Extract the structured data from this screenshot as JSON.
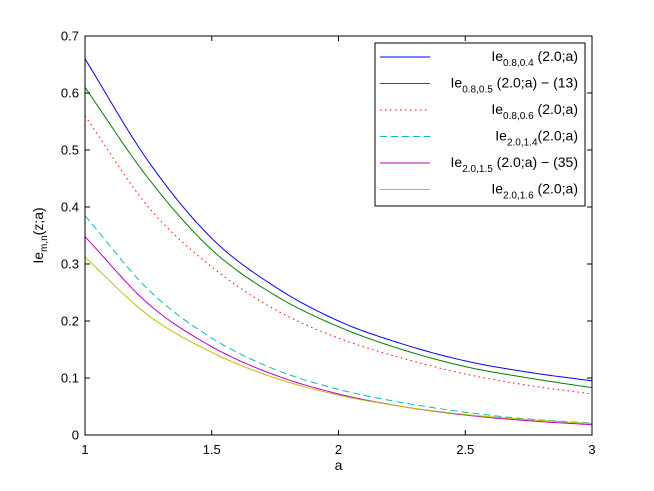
{
  "chart_data": {
    "type": "line",
    "title": "",
    "xlabel": "a",
    "ylabel": {
      "main": "Ie",
      "sub": "m,n",
      "suffix": "(z;a)"
    },
    "xlim": [
      1,
      3
    ],
    "ylim": [
      0,
      0.7
    ],
    "xticks": [
      1,
      1.5,
      2,
      2.5,
      3
    ],
    "xtick_labels": [
      "1",
      "1.5",
      "2",
      "2.5",
      "3"
    ],
    "yticks": [
      0,
      0.1,
      0.2,
      0.3,
      0.4,
      0.5,
      0.6,
      0.7
    ],
    "ytick_labels": [
      "0",
      "0.1",
      "0.2",
      "0.3",
      "0.4",
      "0.5",
      "0.6",
      "0.7"
    ],
    "grid": false,
    "legend_position": "top-right",
    "x": [
      1,
      1.25,
      1.5,
      1.75,
      2,
      2.25,
      2.5,
      2.75,
      3
    ],
    "series": [
      {
        "name": "Ie_{0.8,0.4} (2.0;a)",
        "legend": {
          "main": "Ie",
          "sub": "0.8,0.4",
          "suffix": " (2.0;a)"
        },
        "color": "#0000ff",
        "dash": "solid",
        "values": [
          0.66,
          0.48,
          0.345,
          0.26,
          0.2,
          0.16,
          0.13,
          0.11,
          0.095
        ]
      },
      {
        "name": "Ie_{0.8,0.5} (2.0;a) - (13)",
        "legend": {
          "main": "Ie",
          "sub": "0.8,0.5",
          "suffix": " (2.0;a) − (13)"
        },
        "color": "#008000",
        "dash": "solid",
        "values": [
          0.61,
          0.45,
          0.325,
          0.245,
          0.19,
          0.15,
          0.12,
          0.1,
          0.083
        ]
      },
      {
        "name": "Ie_{0.8,0.6} (2.0;a)",
        "legend": {
          "main": "Ie",
          "sub": "0.8,0.6",
          "suffix": " (2.0;a)"
        },
        "color": "#ff0000",
        "dash": "dotted",
        "values": [
          0.56,
          0.4,
          0.295,
          0.22,
          0.17,
          0.135,
          0.107,
          0.087,
          0.072
        ]
      },
      {
        "name": "Ie_{2.0,1.4}(2.0;a)",
        "legend": {
          "main": "Ie",
          "sub": "2.0,1.4",
          "suffix": "(2.0;a)"
        },
        "color": "#00bfbf",
        "dash": "dashed",
        "values": [
          0.385,
          0.255,
          0.17,
          0.115,
          0.08,
          0.057,
          0.04,
          0.028,
          0.021
        ]
      },
      {
        "name": "Ie_{2.0,1.5} (2.0;a) - (35)",
        "legend": {
          "main": "Ie",
          "sub": "2.0,1.5",
          "suffix": " (2.0;a) − (35)"
        },
        "color": "#bf00bf",
        "dash": "solid",
        "values": [
          0.348,
          0.23,
          0.155,
          0.105,
          0.072,
          0.05,
          0.035,
          0.025,
          0.018
        ]
      },
      {
        "name": "Ie_{2.0,1.6} (2.0;a)",
        "legend": {
          "main": "Ie",
          "sub": "2.0,1.6",
          "suffix": " (2.0;a)"
        },
        "color": "#bfbf00",
        "dash": "solid",
        "values": [
          0.312,
          0.21,
          0.145,
          0.1,
          0.07,
          0.05,
          0.036,
          0.027,
          0.02
        ]
      }
    ]
  }
}
